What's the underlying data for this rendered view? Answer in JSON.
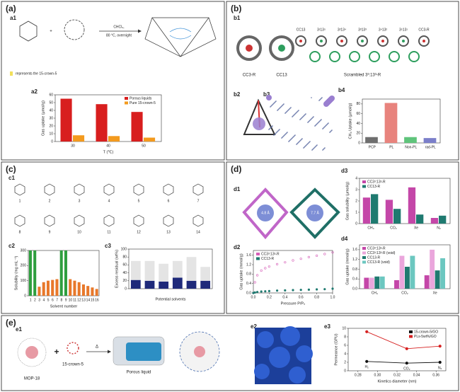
{
  "labels": {
    "panels": [
      "(a)",
      "(b)",
      "(c)",
      "(d)",
      "(e)"
    ],
    "a1": "a1",
    "a2": "a2",
    "b1": "b1",
    "b2": "b2",
    "b3": "b3",
    "b4": "b4",
    "c1": "c1",
    "c2": "c2",
    "c3": "c3",
    "d1": "d1",
    "d2": "d2",
    "d3": "d3",
    "d4": "d4",
    "e1": "e1",
    "e2": "e2",
    "e3": "e3",
    "solvent": "CHCl₃,",
    "conditions": "80 °C, overnight",
    "crown_note": "represents the 15-crown-5",
    "b1_header": [
      "CC13",
      "3¹13⁵",
      "3²13⁴",
      "3³13³",
      "3⁴13²",
      "3⁵13¹",
      "CC3-R"
    ],
    "cc3r": "CC3-R",
    "cc13": "CC13",
    "scrambled": "Scrambled 3³:13³-R",
    "c1_numbers": [
      "1",
      "2",
      "3",
      "4",
      "5",
      "6",
      "7",
      "8",
      "9",
      "10",
      "11",
      "12",
      "13",
      "14"
    ],
    "pore_a": "4.8 Å",
    "pore_b": "7.7 Å",
    "mop": "MOP-18",
    "crown": "15-crown-5",
    "porous_liquid": "Porous liquid",
    "delta": "Δ"
  },
  "chart_data": [
    {
      "type": "bar",
      "ylabel": "Gas uptake (μmol/g)",
      "xlabel": "T (℃)",
      "categories": [
        "30",
        "40",
        "50"
      ],
      "series": [
        {
          "name": "Porous liquids",
          "color": "#d81e1e",
          "values": [
            55,
            48,
            38
          ]
        },
        {
          "name": "Pure 15-crown-5",
          "color": "#f39a1e",
          "values": [
            8,
            7,
            5
          ]
        }
      ],
      "ylim": [
        0,
        60
      ],
      "yticks": [
        0,
        10,
        20,
        30,
        40,
        50,
        60
      ],
      "legend": "upper-right"
    },
    {
      "type": "bar",
      "ylabel": "CH₄ Uptake (μmol/g)",
      "categories": [
        "PCP",
        "PL",
        "Non-PL",
        "rad-PL"
      ],
      "values": [
        12,
        82,
        12,
        10
      ],
      "colors": [
        "#6e6e6e",
        "#e8837d",
        "#5fc47b",
        "#7b7fca"
      ],
      "ylim": [
        0,
        90
      ],
      "yticks": [
        0,
        20,
        40,
        60,
        80
      ]
    },
    {
      "type": "bar",
      "ylabel": "Solubility (mg mL⁻¹)",
      "xlabel": "Solvent number",
      "categories": [
        "1",
        "2",
        "3",
        "4",
        "5",
        "6",
        "7",
        "8",
        "9",
        "10",
        "11",
        "12",
        "13",
        "14",
        "15",
        "16"
      ],
      "values": [
        300,
        300,
        60,
        90,
        100,
        105,
        110,
        300,
        300,
        110,
        100,
        90,
        75,
        65,
        55,
        45
      ],
      "colors": [
        "#2e9e3e",
        "#2e9e3e",
        "#e8782a",
        "#e8782a",
        "#e8782a",
        "#e8782a",
        "#e8782a",
        "#2e9e3e",
        "#2e9e3e",
        "#e8782a",
        "#e8782a",
        "#e8782a",
        "#e8782a",
        "#e8782a",
        "#e8782a",
        "#e8782a"
      ],
      "ylim": [
        0,
        300
      ],
      "yticks": [
        0,
        100,
        200,
        300
      ]
    },
    {
      "type": "bar",
      "stacked": true,
      "ylabel": "Excess residual (wt%)",
      "xlabel": "Potential solvents",
      "categories": [
        null,
        null,
        null,
        null,
        null,
        null
      ],
      "series": [
        {
          "color": "#1f2a7a",
          "values": [
            22,
            20,
            18,
            28,
            20,
            20
          ]
        },
        {
          "color": "#e4e4e4",
          "values": [
            48,
            50,
            45,
            42,
            60,
            35
          ]
        }
      ],
      "ylim": [
        0,
        100
      ],
      "yticks": [
        0,
        20,
        40,
        60,
        80,
        100
      ]
    },
    {
      "type": "scatter",
      "ylabel": "Gas uptake (mmol/g)",
      "xlabel": "Pressure P/P₀",
      "x": [
        0,
        0.02,
        0.05,
        0.1,
        0.15,
        0.2,
        0.3,
        0.4,
        0.5,
        0.6,
        0.7,
        0.8,
        0.9,
        1.0
      ],
      "series": [
        {
          "name": "CC3³:13³-R",
          "color": "#d65fb8",
          "values": [
            0,
            0.45,
            0.75,
            0.95,
            1.05,
            1.12,
            1.22,
            1.3,
            1.38,
            1.45,
            1.52,
            1.58,
            1.65,
            1.72
          ]
        },
        {
          "name": "CC13-R",
          "color": "#1f7a70",
          "values": [
            0,
            0.02,
            0.04,
            0.06,
            0.07,
            0.08,
            0.1,
            0.11,
            0.12,
            0.13,
            0.14,
            0.15,
            0.16,
            0.18
          ]
        }
      ],
      "xlim": [
        0,
        1.0
      ],
      "xticks": [
        {
          "value": 0,
          "label": "0.0"
        },
        0.2,
        0.4,
        0.6,
        0.8,
        {
          "value": 1.0,
          "label": "1.0"
        }
      ],
      "ylim": [
        0,
        1.8
      ],
      "yticks": [
        {
          "value": 0,
          "label": "0.0"
        },
        0.4,
        0.8,
        1.2,
        1.6
      ],
      "legend": "upper-left"
    },
    {
      "type": "bar",
      "ylabel": "Gas solubility (μmol/g)",
      "categories": [
        "CH₄",
        "CO₂",
        "Xe",
        "N₂"
      ],
      "series": [
        {
          "name": "CC3³:13³-R",
          "color": "#c447a8",
          "values": [
            2.3,
            2.1,
            3.2,
            0.5
          ]
        },
        {
          "name": "CC13-R",
          "color": "#1f7a70",
          "values": [
            2.6,
            1.3,
            0.8,
            0.7
          ]
        }
      ],
      "ylim": [
        0,
        4
      ],
      "yticks": [
        0,
        1,
        2,
        3,
        4
      ],
      "legend": "upper-left"
    },
    {
      "type": "bar",
      "ylabel": "Gas uptake (mmol/g)",
      "categories": [
        "CH₄",
        "CO₂",
        "Xe"
      ],
      "series": [
        {
          "name": "CC3³:13³-R",
          "color": "#c447a8",
          "values": [
            0.45,
            0.35,
            0.55
          ]
        },
        {
          "name": "CC3³:13³-R (void)",
          "color": "#eaa6dc",
          "values": [
            0.45,
            1.35,
            1.6
          ]
        },
        {
          "name": "CC13-R",
          "color": "#1f7a70",
          "values": [
            0.5,
            0.9,
            0.75
          ]
        },
        {
          "name": "CC13-R (void)",
          "color": "#6cc7c0",
          "values": [
            0.5,
            1.35,
            1.25
          ]
        }
      ],
      "ylim": [
        0,
        1.8
      ],
      "yticks": [
        {
          "value": 0,
          "label": "0.0"
        },
        0.4,
        0.8,
        1.2,
        1.6
      ],
      "legend": "upper-left"
    },
    {
      "type": "line",
      "ylabel": "Permeance (GPU)",
      "xlabel": "Kinetics diameter (nm)",
      "x": [
        0.289,
        0.33,
        0.364
      ],
      "series": [
        {
          "name": "15-crown-5/GO",
          "color": "#111111",
          "values": [
            2.2,
            1.8,
            2.0
          ]
        },
        {
          "name": "PLs-5wt%/GO",
          "color": "#d62020",
          "values": [
            9.2,
            5.2,
            5.8
          ]
        }
      ],
      "annotations": [
        "H₂",
        "CO₂",
        "N₂"
      ],
      "xlim": [
        0.27,
        0.37
      ],
      "xticks": [
        0.28,
        {
          "value": 0.3,
          "label": "0.30"
        },
        0.32,
        0.34,
        0.36
      ],
      "ylim": [
        0,
        10
      ],
      "yticks": [
        0,
        2,
        4,
        6,
        8,
        10
      ],
      "legend": "upper-right"
    }
  ]
}
